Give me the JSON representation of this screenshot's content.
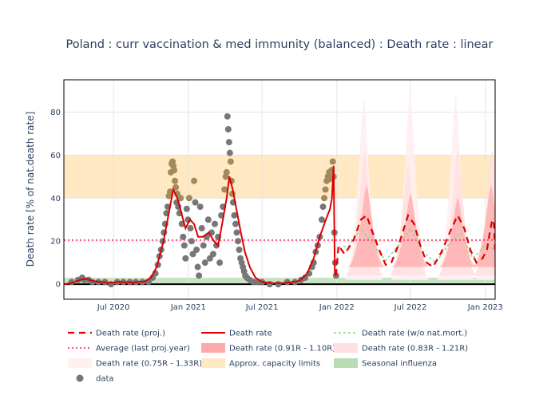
{
  "chart_data": {
    "type": "line",
    "title": "Poland : curr vaccination & med immunity (balanced) : Death rate : linear",
    "ylabel": "Death rate [% of nat.death rate]",
    "xlabel": "",
    "x_range": [
      "2020-03-01",
      "2023-01-25"
    ],
    "ylim": [
      -7,
      95
    ],
    "y_ticks": [
      0,
      20,
      40,
      60,
      80
    ],
    "x_ticks": [
      {
        "date": "2020-07-01",
        "label": "Jul 2020"
      },
      {
        "date": "2021-01-01",
        "label": "Jan 2021"
      },
      {
        "date": "2021-07-01",
        "label": "Jul 2021"
      },
      {
        "date": "2022-01-01",
        "label": "Jan 2022"
      },
      {
        "date": "2022-07-01",
        "label": "Jul 2022"
      },
      {
        "date": "2023-01-01",
        "label": "Jan 2023"
      }
    ],
    "grid": true,
    "legend_position": "bottom",
    "bands": {
      "capacity": [
        40,
        60
      ],
      "influenza": [
        0,
        3
      ],
      "average_last_proj_year": 20.5
    },
    "colors": {
      "proj": "#e00000",
      "death_rate": "#dd0000",
      "wo_natmort": "#8fd18f",
      "average": "#ff3b6b",
      "band_091": "#ffaaaa",
      "band_083": "#ffe0e0",
      "band_075": "#fff0f0",
      "capacity": "#ffe8c2",
      "influenza": "#b9dcb4",
      "data_gray": "#777777",
      "data_tan": "#a38a5c"
    },
    "series": [
      {
        "name": "Death rate",
        "type": "line",
        "points": [
          [
            "2020-03-01",
            0
          ],
          [
            "2020-03-20",
            0.5
          ],
          [
            "2020-04-10",
            2
          ],
          [
            "2020-04-25",
            2.5
          ],
          [
            "2020-05-10",
            1.5
          ],
          [
            "2020-06-01",
            1
          ],
          [
            "2020-06-20",
            0.6
          ],
          [
            "2020-07-15",
            1
          ],
          [
            "2020-08-15",
            0.8
          ],
          [
            "2020-09-15",
            1.2
          ],
          [
            "2020-10-01",
            3
          ],
          [
            "2020-10-15",
            8
          ],
          [
            "2020-11-01",
            20
          ],
          [
            "2020-11-15",
            34
          ],
          [
            "2020-11-25",
            44
          ],
          [
            "2020-12-05",
            40
          ],
          [
            "2020-12-15",
            33
          ],
          [
            "2020-12-25",
            26
          ],
          [
            "2021-01-05",
            30
          ],
          [
            "2021-01-15",
            28
          ],
          [
            "2021-01-25",
            22
          ],
          [
            "2021-02-05",
            22
          ],
          [
            "2021-02-20",
            24
          ],
          [
            "2021-03-05",
            20
          ],
          [
            "2021-03-15",
            18
          ],
          [
            "2021-03-25",
            28
          ],
          [
            "2021-04-05",
            40
          ],
          [
            "2021-04-12",
            50
          ],
          [
            "2021-04-20",
            44
          ],
          [
            "2021-04-30",
            34
          ],
          [
            "2021-05-10",
            24
          ],
          [
            "2021-05-20",
            15
          ],
          [
            "2021-06-01",
            8
          ],
          [
            "2021-06-15",
            3
          ],
          [
            "2021-07-01",
            1
          ],
          [
            "2021-08-01",
            0.4
          ],
          [
            "2021-09-01",
            0.6
          ],
          [
            "2021-10-01",
            1.5
          ],
          [
            "2021-10-20",
            5
          ],
          [
            "2021-11-05",
            12
          ],
          [
            "2021-11-20",
            22
          ],
          [
            "2021-12-05",
            30
          ],
          [
            "2021-12-15",
            35
          ],
          [
            "2021-12-20",
            40
          ],
          [
            "2021-12-24",
            55
          ],
          [
            "2021-12-27",
            5
          ],
          [
            "2021-12-30",
            4
          ]
        ]
      },
      {
        "name": "Death rate (proj.)",
        "type": "line",
        "points": [
          [
            "2021-12-30",
            4
          ],
          [
            "2022-01-05",
            18
          ],
          [
            "2022-01-20",
            14
          ],
          [
            "2022-02-10",
            20
          ],
          [
            "2022-03-01",
            30
          ],
          [
            "2022-03-15",
            32
          ],
          [
            "2022-03-28",
            25
          ],
          [
            "2022-04-15",
            16
          ],
          [
            "2022-05-01",
            9
          ],
          [
            "2022-05-15",
            10
          ],
          [
            "2022-06-05",
            20
          ],
          [
            "2022-06-25",
            32
          ],
          [
            "2022-07-10",
            28
          ],
          [
            "2022-07-25",
            18
          ],
          [
            "2022-08-10",
            10
          ],
          [
            "2022-08-25",
            8
          ],
          [
            "2022-09-15",
            15
          ],
          [
            "2022-10-10",
            26
          ],
          [
            "2022-10-25",
            32
          ],
          [
            "2022-11-10",
            26
          ],
          [
            "2022-11-25",
            16
          ],
          [
            "2022-12-10",
            10
          ],
          [
            "2022-12-25",
            12
          ],
          [
            "2023-01-05",
            16
          ],
          [
            "2023-01-10",
            22
          ],
          [
            "2023-01-18",
            30
          ],
          [
            "2023-01-22",
            28
          ],
          [
            "2023-01-25",
            16
          ]
        ]
      },
      {
        "name": "Death rate (w/o nat.mort.)",
        "type": "line",
        "points": [
          [
            "2022-01-05",
            17
          ],
          [
            "2022-02-01",
            18
          ],
          [
            "2022-03-01",
            26
          ],
          [
            "2022-04-01",
            18
          ],
          [
            "2022-05-01",
            11
          ],
          [
            "2022-06-01",
            18
          ],
          [
            "2022-07-01",
            26
          ],
          [
            "2022-08-01",
            15
          ],
          [
            "2022-09-01",
            10
          ],
          [
            "2022-10-01",
            18
          ],
          [
            "2022-11-01",
            24
          ],
          [
            "2022-12-01",
            12
          ],
          [
            "2023-01-01",
            18
          ],
          [
            "2023-01-25",
            16
          ]
        ]
      },
      {
        "name": "Average (last proj.year)",
        "type": "hline",
        "value": 20.5
      },
      {
        "name": "Death rate (0.91R - 1.10R)",
        "type": "band",
        "peaks": [
          [
            "2022-03-15",
            46
          ],
          [
            "2022-07-01",
            42
          ],
          [
            "2022-10-25",
            40
          ],
          [
            "2023-01-15",
            46
          ]
        ],
        "floor": 8
      },
      {
        "name": "Death rate (0.83R - 1.21R)",
        "type": "band",
        "peaks": [
          [
            "2022-03-10",
            62
          ],
          [
            "2022-06-25",
            56
          ],
          [
            "2022-10-25",
            62
          ],
          [
            "2023-01-18",
            62
          ]
        ],
        "floor": 4
      },
      {
        "name": "Death rate (0.75R - 1.33R)",
        "type": "band",
        "peaks": [
          [
            "2022-03-08",
            87
          ],
          [
            "2022-06-30",
            90
          ],
          [
            "2022-10-20",
            88
          ],
          [
            "2023-01-20",
            60
          ]
        ],
        "floor": 2
      },
      {
        "name": "Approx. capacity limits",
        "type": "hband",
        "range": [
          40,
          60
        ]
      },
      {
        "name": "Seasonal influenza",
        "type": "hband",
        "range": [
          0,
          3
        ]
      },
      {
        "name": "data",
        "type": "scatter",
        "points": [
          [
            "2020-03-20",
            1
          ],
          [
            "2020-04-05",
            2
          ],
          [
            "2020-04-15",
            3
          ],
          [
            "2020-04-20",
            2
          ],
          [
            "2020-05-01",
            2
          ],
          [
            "2020-05-10",
            1
          ],
          [
            "2020-05-25",
            1
          ],
          [
            "2020-06-10",
            1
          ],
          [
            "2020-06-25",
            0
          ],
          [
            "2020-07-10",
            1
          ],
          [
            "2020-07-25",
            1
          ],
          [
            "2020-08-10",
            1
          ],
          [
            "2020-08-25",
            1
          ],
          [
            "2020-09-10",
            1
          ],
          [
            "2020-09-25",
            1
          ],
          [
            "2020-10-05",
            3
          ],
          [
            "2020-10-12",
            5
          ],
          [
            "2020-10-18",
            9
          ],
          [
            "2020-10-22",
            13
          ],
          [
            "2020-10-26",
            16
          ],
          [
            "2020-10-30",
            20
          ],
          [
            "2020-11-02",
            24
          ],
          [
            "2020-11-05",
            28
          ],
          [
            "2020-11-08",
            33
          ],
          [
            "2020-11-11",
            36
          ],
          [
            "2020-11-14",
            41
          ],
          [
            "2020-11-17",
            43
          ],
          [
            "2020-11-19",
            52
          ],
          [
            "2020-11-21",
            56
          ],
          [
            "2020-11-23",
            57
          ],
          [
            "2020-11-25",
            55
          ],
          [
            "2020-11-27",
            53
          ],
          [
            "2020-11-29",
            48
          ],
          [
            "2020-12-01",
            45
          ],
          [
            "2020-12-03",
            38
          ],
          [
            "2020-12-05",
            42
          ],
          [
            "2020-12-07",
            36
          ],
          [
            "2020-12-10",
            33
          ],
          [
            "2020-12-13",
            40
          ],
          [
            "2020-12-16",
            28
          ],
          [
            "2020-12-19",
            22
          ],
          [
            "2020-12-22",
            18
          ],
          [
            "2020-12-25",
            12
          ],
          [
            "2020-12-28",
            35
          ],
          [
            "2020-12-31",
            30
          ],
          [
            "2021-01-03",
            40
          ],
          [
            "2021-01-06",
            26
          ],
          [
            "2021-01-09",
            20
          ],
          [
            "2021-01-12",
            14
          ],
          [
            "2021-01-15",
            48
          ],
          [
            "2021-01-18",
            38
          ],
          [
            "2021-01-21",
            16
          ],
          [
            "2021-01-24",
            8
          ],
          [
            "2021-01-27",
            4
          ],
          [
            "2021-01-30",
            36
          ],
          [
            "2021-02-03",
            26
          ],
          [
            "2021-02-07",
            18
          ],
          [
            "2021-02-11",
            10
          ],
          [
            "2021-02-15",
            22
          ],
          [
            "2021-02-19",
            30
          ],
          [
            "2021-02-23",
            12
          ],
          [
            "2021-02-27",
            24
          ],
          [
            "2021-03-03",
            14
          ],
          [
            "2021-03-07",
            28
          ],
          [
            "2021-03-11",
            18
          ],
          [
            "2021-03-15",
            22
          ],
          [
            "2021-03-19",
            10
          ],
          [
            "2021-03-23",
            32
          ],
          [
            "2021-03-27",
            36
          ],
          [
            "2021-03-31",
            44
          ],
          [
            "2021-04-03",
            50
          ],
          [
            "2021-04-05",
            52
          ],
          [
            "2021-04-07",
            78
          ],
          [
            "2021-04-09",
            72
          ],
          [
            "2021-04-11",
            66
          ],
          [
            "2021-04-13",
            61
          ],
          [
            "2021-04-15",
            57
          ],
          [
            "2021-04-17",
            48
          ],
          [
            "2021-04-19",
            42
          ],
          [
            "2021-04-21",
            38
          ],
          [
            "2021-04-24",
            32
          ],
          [
            "2021-04-27",
            28
          ],
          [
            "2021-04-30",
            24
          ],
          [
            "2021-05-03",
            20
          ],
          [
            "2021-05-06",
            16
          ],
          [
            "2021-05-09",
            12
          ],
          [
            "2021-05-12",
            10
          ],
          [
            "2021-05-15",
            8
          ],
          [
            "2021-05-18",
            6
          ],
          [
            "2021-05-21",
            4
          ],
          [
            "2021-05-25",
            3
          ],
          [
            "2021-06-01",
            2
          ],
          [
            "2021-06-10",
            1
          ],
          [
            "2021-06-20",
            1
          ],
          [
            "2021-07-01",
            1
          ],
          [
            "2021-07-20",
            0
          ],
          [
            "2021-08-10",
            0
          ],
          [
            "2021-09-01",
            1
          ],
          [
            "2021-09-20",
            1
          ],
          [
            "2021-10-05",
            2
          ],
          [
            "2021-10-15",
            3
          ],
          [
            "2021-10-25",
            5
          ],
          [
            "2021-11-01",
            8
          ],
          [
            "2021-11-05",
            10
          ],
          [
            "2021-11-10",
            15
          ],
          [
            "2021-11-15",
            18
          ],
          [
            "2021-11-20",
            22
          ],
          [
            "2021-11-25",
            30
          ],
          [
            "2021-11-28",
            36
          ],
          [
            "2021-12-01",
            40
          ],
          [
            "2021-12-04",
            44
          ],
          [
            "2021-12-07",
            48
          ],
          [
            "2021-12-10",
            50
          ],
          [
            "2021-12-13",
            52
          ],
          [
            "2021-12-16",
            49
          ],
          [
            "2021-12-19",
            53
          ],
          [
            "2021-12-22",
            57
          ],
          [
            "2021-12-24",
            50
          ],
          [
            "2021-12-26",
            24
          ],
          [
            "2021-12-28",
            10
          ],
          [
            "2021-12-30",
            4
          ]
        ]
      }
    ]
  },
  "legend": {
    "items": [
      {
        "label": "Death rate (proj.)",
        "style": "dash-red"
      },
      {
        "label": "Death rate",
        "style": "solid-red"
      },
      {
        "label": "Death rate (w/o nat.mort.)",
        "style": "dot-green"
      },
      {
        "label": "Average (last proj.year)",
        "style": "dot-pink"
      },
      {
        "label": "Death rate (0.91R - 1.10R)",
        "style": "fill-band091"
      },
      {
        "label": "Death rate (0.83R - 1.21R)",
        "style": "fill-band083"
      },
      {
        "label": "Death rate (0.75R - 1.33R)",
        "style": "fill-band075"
      },
      {
        "label": "Approx. capacity limits",
        "style": "fill-capacity"
      },
      {
        "label": "Seasonal influenza",
        "style": "fill-influenza"
      },
      {
        "label": "data",
        "style": "marker-gray"
      }
    ]
  }
}
